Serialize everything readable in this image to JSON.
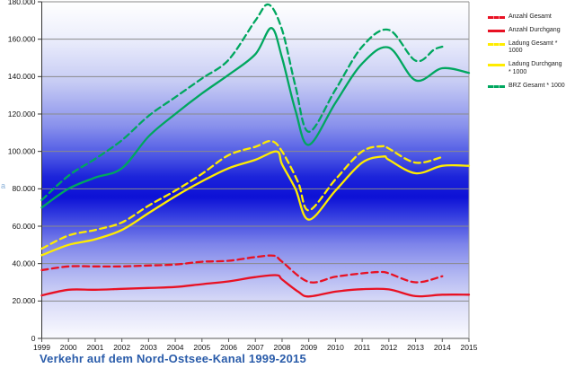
{
  "title": "Verkehr auf dem Nord-Ostsee-Kanal 1999-2015",
  "stray_mark": "a",
  "legend": {
    "items": [
      {
        "label": "Anzahl Gesamt",
        "color": "#e81123",
        "style": "dashed"
      },
      {
        "label": "Anzahl Durchgang",
        "color": "#e81123",
        "style": "solid"
      },
      {
        "label": "Ladung Gesamt * 1000",
        "color": "#ffec00",
        "style": "dashed"
      },
      {
        "label": "Ladung Durchgang * 1000",
        "color": "#ffec00",
        "style": "solid"
      },
      {
        "label": "BRZ Gesamt * 1000",
        "color": "#00a75f",
        "style": "dashed"
      }
    ]
  },
  "chart_data": {
    "type": "line",
    "title": "Verkehr auf dem Nord-Ostsee-Kanal 1999-2015",
    "xlabel": "",
    "ylabel": "",
    "x_ticks": [
      "1999",
      "2000",
      "2001",
      "2002",
      "2003",
      "2004",
      "2005",
      "2006",
      "2007",
      "2008",
      "2009",
      "2010",
      "2011",
      "2012",
      "2013",
      "2014",
      "2015"
    ],
    "x_range": [
      1999,
      2015
    ],
    "ylim": [
      0,
      180000
    ],
    "y_ticks": [
      {
        "value": 0,
        "label": "0"
      },
      {
        "value": 20000,
        "label": "20.000"
      },
      {
        "value": 40000,
        "label": "40.000"
      },
      {
        "value": 60000,
        "label": "60.000"
      },
      {
        "value": 80000,
        "label": "80.000"
      },
      {
        "value": 100000,
        "label": "100.000"
      },
      {
        "value": 120000,
        "label": "120.000"
      },
      {
        "value": 140000,
        "label": "140.000"
      },
      {
        "value": 160000,
        "label": "160.000"
      },
      {
        "value": 180000,
        "label": "180.000"
      }
    ],
    "grid": true,
    "legend_position": "right-outside",
    "plot_background_gradient": [
      [
        "0%",
        "#ffffff"
      ],
      [
        "10%",
        "#eef0fc"
      ],
      [
        "24%",
        "#c6cbf4"
      ],
      [
        "37%",
        "#8890ec"
      ],
      [
        "46%",
        "#4a55e4"
      ],
      [
        "52%",
        "#1c24da"
      ],
      [
        "58%",
        "#0d11d6"
      ],
      [
        "63%",
        "#3039df"
      ],
      [
        "72%",
        "#7d84ea"
      ],
      [
        "81%",
        "#b2b7f2"
      ],
      [
        "90%",
        "#dcdef8"
      ],
      [
        "100%",
        "#fbfbff"
      ]
    ],
    "note_x_values": "x = year; fractional years are intra-year shape anchors read from the curve",
    "series": [
      {
        "id": "anzahl-gesamt",
        "legend": "Anzahl Gesamt",
        "color": "#e81123",
        "dashed": true,
        "points": [
          [
            1999,
            36500
          ],
          [
            2000,
            38500
          ],
          [
            2001,
            38500
          ],
          [
            2002,
            38500
          ],
          [
            2003,
            39000
          ],
          [
            2004,
            39500
          ],
          [
            2005,
            41000
          ],
          [
            2006,
            41500
          ],
          [
            2007,
            43500
          ],
          [
            2007.7,
            44200
          ],
          [
            2008,
            41000
          ],
          [
            2009,
            30200
          ],
          [
            2010,
            33000
          ],
          [
            2011,
            34800
          ],
          [
            2011.7,
            35500
          ],
          [
            2012,
            34800
          ],
          [
            2013,
            30000
          ],
          [
            2014,
            33200
          ]
        ]
      },
      {
        "id": "anzahl-durchgang",
        "legend": "Anzahl Durchgang",
        "color": "#e81123",
        "dashed": false,
        "points": [
          [
            1999,
            23000
          ],
          [
            2000,
            26000
          ],
          [
            2001,
            26000
          ],
          [
            2002,
            26500
          ],
          [
            2003,
            27000
          ],
          [
            2004,
            27500
          ],
          [
            2005,
            29000
          ],
          [
            2006,
            30500
          ],
          [
            2007,
            32800
          ],
          [
            2007.8,
            33800
          ],
          [
            2008,
            31500
          ],
          [
            2008.6,
            25000
          ],
          [
            2009,
            22400
          ],
          [
            2010,
            25000
          ],
          [
            2011,
            26300
          ],
          [
            2012,
            26200
          ],
          [
            2013,
            22600
          ],
          [
            2014,
            23400
          ],
          [
            2015,
            23400
          ]
        ]
      },
      {
        "id": "ladung-gesamt",
        "legend": "Ladung Gesamt * 1000",
        "color": "#ffec00",
        "dashed": true,
        "points": [
          [
            1999,
            48000
          ],
          [
            2000,
            55000
          ],
          [
            2001,
            58000
          ],
          [
            2002,
            62000
          ],
          [
            2003,
            71000
          ],
          [
            2004,
            79000
          ],
          [
            2005,
            88000
          ],
          [
            2006,
            98000
          ],
          [
            2007,
            102500
          ],
          [
            2007.6,
            105500
          ],
          [
            2008,
            100000
          ],
          [
            2008.6,
            83500
          ],
          [
            2009,
            68500
          ],
          [
            2010,
            85000
          ],
          [
            2011,
            100000
          ],
          [
            2011.8,
            102800
          ],
          [
            2012,
            101500
          ],
          [
            2013,
            94000
          ],
          [
            2014,
            97000
          ]
        ]
      },
      {
        "id": "ladung-durchgang",
        "legend": "Ladung Durchgang * 1000",
        "color": "#ffec00",
        "dashed": false,
        "points": [
          [
            1999,
            44500
          ],
          [
            2000,
            50000
          ],
          [
            2001,
            53000
          ],
          [
            2002,
            58000
          ],
          [
            2003,
            67000
          ],
          [
            2004,
            76000
          ],
          [
            2005,
            84000
          ],
          [
            2006,
            91000
          ],
          [
            2007,
            95500
          ],
          [
            2007.8,
            100000
          ],
          [
            2008,
            93000
          ],
          [
            2008.5,
            80000
          ],
          [
            2009,
            63500
          ],
          [
            2010,
            79000
          ],
          [
            2011,
            94000
          ],
          [
            2011.8,
            97300
          ],
          [
            2012,
            95500
          ],
          [
            2013,
            88300
          ],
          [
            2014,
            92300
          ],
          [
            2015,
            92300
          ]
        ]
      },
      {
        "id": "brz-gesamt",
        "legend": "BRZ Gesamt * 1000",
        "color": "#00a75f",
        "dashed": true,
        "points": [
          [
            1999,
            74000
          ],
          [
            2000,
            87000
          ],
          [
            2001,
            96000
          ],
          [
            2002,
            106000
          ],
          [
            2003,
            119000
          ],
          [
            2004,
            129000
          ],
          [
            2005,
            139000
          ],
          [
            2006,
            149000
          ],
          [
            2007,
            170000
          ],
          [
            2007.5,
            178500
          ],
          [
            2008,
            165000
          ],
          [
            2008.5,
            135000
          ],
          [
            2009,
            110500
          ],
          [
            2010,
            133000
          ],
          [
            2011,
            156000
          ],
          [
            2012,
            165000
          ],
          [
            2013,
            148500
          ],
          [
            2013.7,
            154500
          ],
          [
            2014,
            156000
          ]
        ]
      },
      {
        "id": "green-solid-unlabeled",
        "legend": null,
        "color": "#00a75f",
        "dashed": false,
        "points": [
          [
            1999,
            70000
          ],
          [
            2000,
            80000
          ],
          [
            2001,
            86000
          ],
          [
            2002,
            91000
          ],
          [
            2003,
            108000
          ],
          [
            2004,
            120000
          ],
          [
            2005,
            131000
          ],
          [
            2006,
            141000
          ],
          [
            2007,
            152000
          ],
          [
            2007.6,
            166000
          ],
          [
            2008,
            150000
          ],
          [
            2008.5,
            122000
          ],
          [
            2009,
            103500
          ],
          [
            2010,
            126000
          ],
          [
            2011,
            147000
          ],
          [
            2012,
            155500
          ],
          [
            2013,
            138000
          ],
          [
            2014,
            144500
          ],
          [
            2015,
            142000
          ]
        ]
      }
    ]
  }
}
